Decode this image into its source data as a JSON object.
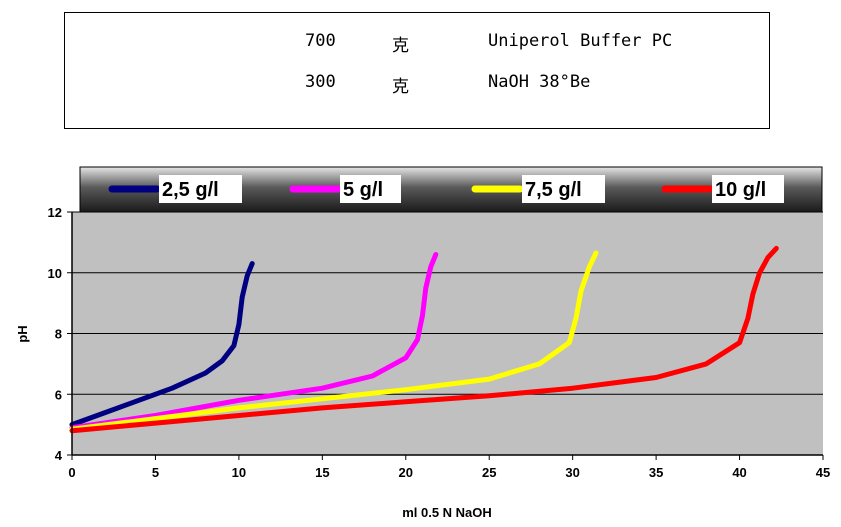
{
  "recipe": {
    "rows": [
      {
        "qty": "700",
        "unit": "克",
        "name": "Uniperol Buffer PC"
      },
      {
        "qty": "300",
        "unit": "克",
        "name": "NaOH 38°Be"
      }
    ]
  },
  "chart_data": {
    "type": "line",
    "title": "",
    "xlabel": "ml 0.5 N NaOH",
    "ylabel": "pH",
    "xlim": [
      0,
      45
    ],
    "ylim": [
      4,
      12
    ],
    "xticks": [
      "0",
      "5",
      "10",
      "15",
      "20",
      "25",
      "30",
      "35",
      "40",
      "45"
    ],
    "yticks": [
      "4",
      "6",
      "8",
      "10",
      "12"
    ],
    "grid": "horizontal",
    "legend_position": "top",
    "plot_background": "#c0c0c0",
    "series": [
      {
        "name": "2,5 g/l",
        "color": "#000080",
        "x": [
          0,
          2,
          4,
          6,
          8,
          9,
          9.7,
          10,
          10.2,
          10.5,
          10.8
        ],
        "y": [
          5.0,
          5.4,
          5.8,
          6.2,
          6.7,
          7.1,
          7.6,
          8.3,
          9.2,
          9.9,
          10.3
        ]
      },
      {
        "name": "5 g/l",
        "color": "#ff00ff",
        "x": [
          0,
          5,
          10,
          15,
          18,
          20,
          20.7,
          21,
          21.2,
          21.5,
          21.8
        ],
        "y": [
          4.9,
          5.3,
          5.8,
          6.2,
          6.6,
          7.2,
          7.8,
          8.6,
          9.5,
          10.2,
          10.6
        ]
      },
      {
        "name": "7,5 g/l",
        "color": "#ffff00",
        "x": [
          0,
          5,
          10,
          15,
          20,
          25,
          28,
          29.8,
          30.2,
          30.5,
          31,
          31.4
        ],
        "y": [
          4.85,
          5.2,
          5.55,
          5.85,
          6.15,
          6.5,
          7.0,
          7.7,
          8.5,
          9.4,
          10.2,
          10.65
        ]
      },
      {
        "name": "10 g/l",
        "color": "#ff0000",
        "x": [
          0,
          5,
          10,
          15,
          20,
          25,
          30,
          35,
          38,
          40,
          40.5,
          40.8,
          41.2,
          41.7,
          42.2
        ],
        "y": [
          4.8,
          5.05,
          5.3,
          5.55,
          5.75,
          5.95,
          6.2,
          6.55,
          7.0,
          7.7,
          8.5,
          9.3,
          10.0,
          10.5,
          10.8
        ]
      }
    ]
  }
}
